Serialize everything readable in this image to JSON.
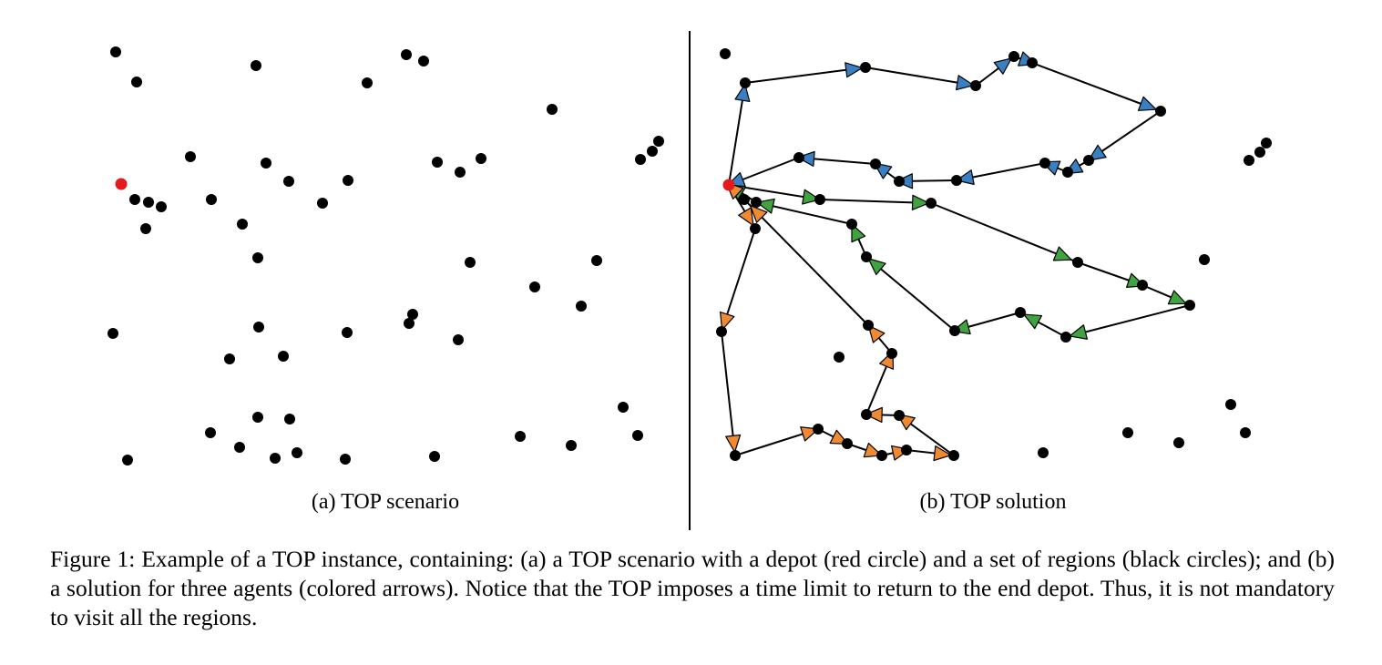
{
  "colors": {
    "depot": "#e41a1c",
    "region": "#000000",
    "agent_blue": "#3a7fc1",
    "agent_green": "#3fa33f",
    "agent_orange": "#f08a32"
  },
  "panels": {
    "a_label": "(a) TOP scenario",
    "b_label": "(b) TOP solution"
  },
  "caption": "Figure 1: Example of a TOP instance, containing: (a) a TOP scenario with a depot (red circle) and a set of regions (black circles); and (b) a solution for three agents (colored arrows). Notice that the TOP imposes a time limit to return to the end depot. Thus, it is not mandatory to visit all the regions."
}
